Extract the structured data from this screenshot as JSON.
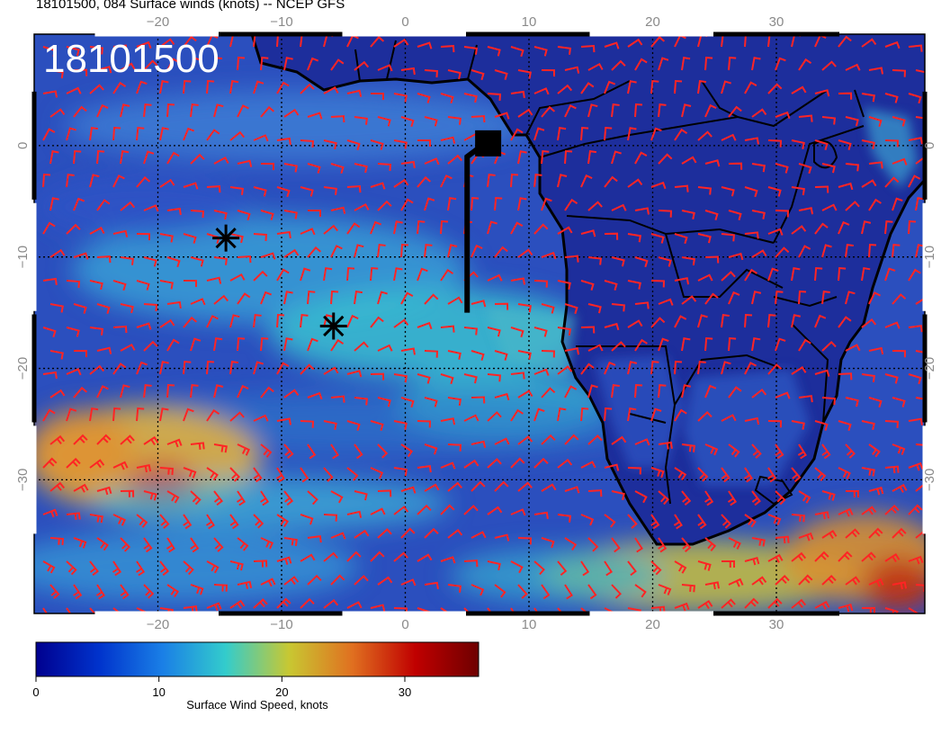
{
  "title": "18101500, 084 Surface winds (knots) -- NCEP GFS",
  "stamp": "18101500",
  "map": {
    "lon_range": [
      -30,
      42
    ],
    "lat_range": [
      -42,
      10
    ],
    "lon_ticks": [
      -20,
      -10,
      0,
      10,
      20,
      30
    ],
    "lon_tick_labels": [
      "−20",
      "−10",
      "0",
      "10",
      "20",
      "30"
    ],
    "lat_ticks": [
      0,
      -10,
      -20,
      -30
    ],
    "lat_tick_labels": [
      "0",
      "−10",
      "−20",
      "−30"
    ],
    "gridlines": true,
    "ocean_color": "#2e50c0",
    "land_color": "#1f2fa0",
    "barb_color": "#ff2020",
    "markers": [
      {
        "type": "asterisk",
        "lon": -14.5,
        "lat": -8.3
      },
      {
        "type": "asterisk",
        "lon": -5.8,
        "lat": -16.2
      },
      {
        "type": "square",
        "lon": 6.7,
        "lat": 0.2
      },
      {
        "type": "track",
        "points": [
          [
            6.2,
            0.0
          ],
          [
            5.0,
            -1.0
          ],
          [
            5.0,
            -15.0
          ]
        ]
      }
    ]
  },
  "colorbar": {
    "label": "Surface Wind Speed, knots",
    "range": [
      0,
      36
    ],
    "ticks": [
      0,
      10,
      20,
      30
    ],
    "tick_labels": [
      "0",
      "10",
      "20",
      "30"
    ],
    "colors": [
      "#00008f",
      "#0033cc",
      "#1a7fe6",
      "#33cccc",
      "#c8c832",
      "#e07020",
      "#c00000",
      "#6e0000"
    ]
  }
}
